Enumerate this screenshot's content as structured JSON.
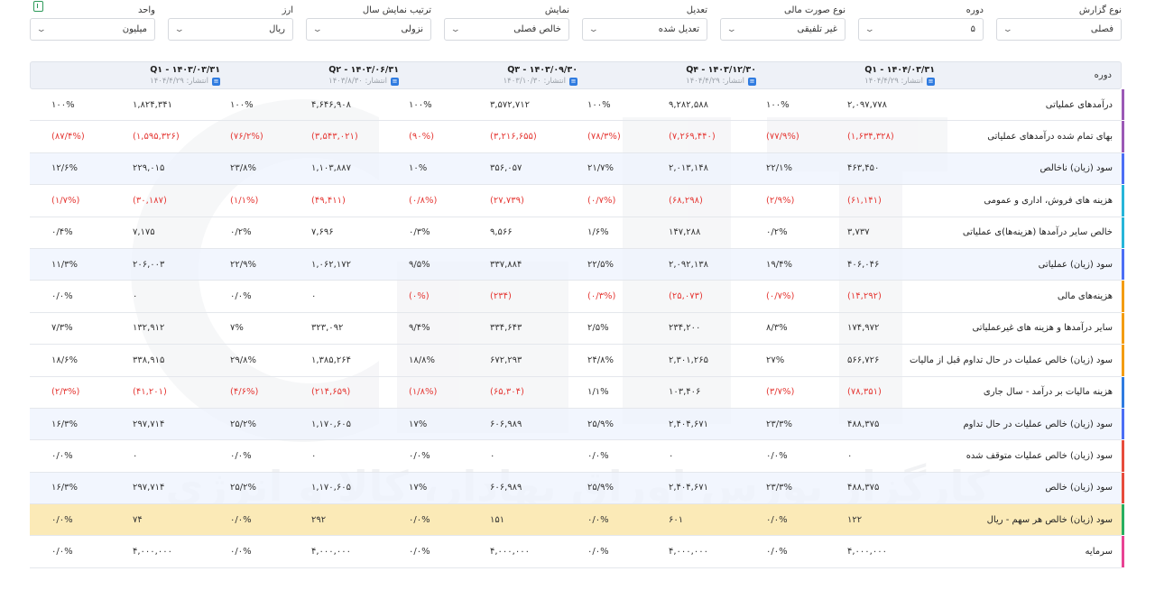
{
  "filters": [
    {
      "label": "نوع گزارش",
      "value": "فصلی"
    },
    {
      "label": "دوره",
      "value": "۵"
    },
    {
      "label": "نوع صورت مالی",
      "value": "غیر تلفیقی"
    },
    {
      "label": "تعدیل",
      "value": "تعدیل شده"
    },
    {
      "label": "نمایش",
      "value": "خالص فصلی"
    },
    {
      "label": "ترتیب نمایش سال",
      "value": "نزولی"
    },
    {
      "label": "ارز",
      "value": "ریال"
    },
    {
      "label": "واحد",
      "value": "میلیون"
    }
  ],
  "header": {
    "title": "دوره",
    "periods": [
      {
        "name": "Q۱ - ۱۴۰۴/۰۳/۳۱",
        "published": "انتشار: ۱۴۰۴/۴/۲۹"
      },
      {
        "name": "Q۴ - ۱۴۰۳/۱۲/۳۰",
        "published": "انتشار: ۱۴۰۴/۴/۲۹"
      },
      {
        "name": "Q۳ - ۱۴۰۳/۰۹/۳۰",
        "published": "انتشار: ۱۴۰۳/۱۰/۳۰"
      },
      {
        "name": "Q۲ - ۱۴۰۳/۰۶/۳۱",
        "published": "انتشار: ۱۴۰۳/۸/۳۰"
      },
      {
        "name": "Q۱ - ۱۴۰۳/۰۳/۳۱",
        "published": "انتشار: ۱۴۰۴/۴/۲۹"
      }
    ],
    "pub_icon": "document-icon"
  },
  "rows": [
    {
      "label": "درآمدهای عملیاتی",
      "stripe": "#9b59b6",
      "cells": [
        [
          "۲,۰۹۷,۷۷۸",
          "۱۰۰%"
        ],
        [
          "۹,۲۸۲,۵۸۸",
          "۱۰۰%"
        ],
        [
          "۳,۵۷۲,۷۱۲",
          "۱۰۰%"
        ],
        [
          "۴,۶۴۶,۹۰۸",
          "۱۰۰%"
        ],
        [
          "۱,۸۲۴,۳۴۱",
          "۱۰۰%"
        ]
      ]
    },
    {
      "label": "بهای تمام شده درآمدهای عملیاتی",
      "stripe": "#9b59b6",
      "cells": [
        [
          "(۱,۶۳۴,۳۲۸)",
          "(۷۷/۹%)"
        ],
        [
          "(۷,۲۶۹,۴۴۰)",
          "(۷۸/۳%)"
        ],
        [
          "(۳,۲۱۶,۶۵۵)",
          "(۹۰%)"
        ],
        [
          "(۳,۵۴۳,۰۲۱)",
          "(۷۶/۲%)"
        ],
        [
          "(۱,۵۹۵,۳۲۶)",
          "(۸۷/۴%)"
        ]
      ]
    },
    {
      "label": "سود (زیان) ناخالص",
      "stripe": "#4c6ef5",
      "cells": [
        [
          "۴۶۳,۴۵۰",
          "۲۲/۱%"
        ],
        [
          "۲,۰۱۳,۱۴۸",
          "۲۱/۷%"
        ],
        [
          "۳۵۶,۰۵۷",
          "۱۰%"
        ],
        [
          "۱,۱۰۳,۸۸۷",
          "۲۳/۸%"
        ],
        [
          "۲۲۹,۰۱۵",
          "۱۲/۶%"
        ]
      ]
    },
    {
      "label": "هزینه های فروش، اداری و عمومی",
      "stripe": "#26b5d9",
      "cells": [
        [
          "(۶۱,۱۴۱)",
          "(۲/۹%)"
        ],
        [
          "(۶۸,۲۹۸)",
          "(۰/۷%)"
        ],
        [
          "(۲۷,۷۳۹)",
          "(۰/۸%)"
        ],
        [
          "(۴۹,۴۱۱)",
          "(۱/۱%)"
        ],
        [
          "(۳۰,۱۸۷)",
          "(۱/۷%)"
        ]
      ]
    },
    {
      "label": "خالص سایر درآمدها (هزینه‌ها)ی عملیاتی",
      "stripe": "#26b5d9",
      "cells": [
        [
          "۳,۷۳۷",
          "۰/۲%"
        ],
        [
          "۱۴۷,۲۸۸",
          "۱/۶%"
        ],
        [
          "۹,۵۶۶",
          "۰/۳%"
        ],
        [
          "۷,۶۹۶",
          "۰/۲%"
        ],
        [
          "۷,۱۷۵",
          "۰/۴%"
        ]
      ]
    },
    {
      "label": "سود (زیان) عملیاتی",
      "stripe": "#4c6ef5",
      "cells": [
        [
          "۴۰۶,۰۴۶",
          "۱۹/۴%"
        ],
        [
          "۲,۰۹۲,۱۳۸",
          "۲۲/۵%"
        ],
        [
          "۳۳۷,۸۸۴",
          "۹/۵%"
        ],
        [
          "۱,۰۶۲,۱۷۲",
          "۲۲/۹%"
        ],
        [
          "۲۰۶,۰۰۳",
          "۱۱/۳%"
        ]
      ]
    },
    {
      "label": "هزینه‌های مالی",
      "stripe": "#f39c12",
      "cells": [
        [
          "(۱۴,۲۹۲)",
          "(۰/۷%)"
        ],
        [
          "(۲۵,۰۷۳)",
          "(۰/۳%)"
        ],
        [
          "(۲۳۴)",
          "(۰%)"
        ],
        [
          "۰",
          "۰/۰%"
        ],
        [
          "۰",
          "۰/۰%"
        ]
      ]
    },
    {
      "label": "سایر درآمدها و هزینه های غیرعملیاتی",
      "stripe": "#f39c12",
      "cells": [
        [
          "۱۷۴,۹۷۲",
          "۸/۳%"
        ],
        [
          "۲۳۴,۲۰۰",
          "۲/۵%"
        ],
        [
          "۳۳۴,۶۴۳",
          "۹/۴%"
        ],
        [
          "۳۲۳,۰۹۲",
          "۷%"
        ],
        [
          "۱۳۲,۹۱۲",
          "۷/۳%"
        ]
      ]
    },
    {
      "label": "سود (زیان) خالص عملیات در حال تداوم قبل از مالیات",
      "stripe": "#f39c12",
      "cells": [
        [
          "۵۶۶,۷۲۶",
          "۲۷%"
        ],
        [
          "۲,۳۰۱,۲۶۵",
          "۲۴/۸%"
        ],
        [
          "۶۷۲,۲۹۳",
          "۱۸/۸%"
        ],
        [
          "۱,۳۸۵,۲۶۴",
          "۲۹/۸%"
        ],
        [
          "۳۳۸,۹۱۵",
          "۱۸/۶%"
        ]
      ]
    },
    {
      "label": "هزینه مالیات بر درآمد - سال جاری",
      "stripe": "#2f7be0",
      "cells": [
        [
          "(۷۸,۳۵۱)",
          "(۳/۷%)"
        ],
        [
          "۱۰۳,۴۰۶",
          "۱/۱%"
        ],
        [
          "(۶۵,۳۰۴)",
          "(۱/۸%)"
        ],
        [
          "(۲۱۴,۶۵۹)",
          "(۴/۶%)"
        ],
        [
          "(۴۱,۲۰۱)",
          "(۲/۳%)"
        ]
      ]
    },
    {
      "label": "سود (زیان) خالص عملیات در حال تداوم",
      "stripe": "#4c6ef5",
      "cells": [
        [
          "۴۸۸,۳۷۵",
          "۲۳/۳%"
        ],
        [
          "۲,۴۰۴,۶۷۱",
          "۲۵/۹%"
        ],
        [
          "۶۰۶,۹۸۹",
          "۱۷%"
        ],
        [
          "۱,۱۷۰,۶۰۵",
          "۲۵/۲%"
        ],
        [
          "۲۹۷,۷۱۴",
          "۱۶/۳%"
        ]
      ]
    },
    {
      "label": "سود (زیان) خالص عملیات متوقف شده",
      "stripe": "#e74c3c",
      "cells": [
        [
          "۰",
          "۰/۰%"
        ],
        [
          "۰",
          "۰/۰%"
        ],
        [
          "۰",
          "۰/۰%"
        ],
        [
          "۰",
          "۰/۰%"
        ],
        [
          "۰",
          "۰/۰%"
        ]
      ]
    },
    {
      "label": "سود (زیان) خالص",
      "stripe": "#e74c3c",
      "cells": [
        [
          "۴۸۸,۳۷۵",
          "۲۳/۳%"
        ],
        [
          "۲,۴۰۴,۶۷۱",
          "۲۵/۹%"
        ],
        [
          "۶۰۶,۹۸۹",
          "۱۷%"
        ],
        [
          "۱,۱۷۰,۶۰۵",
          "۲۵/۲%"
        ],
        [
          "۲۹۷,۷۱۴",
          "۱۶/۳%"
        ]
      ]
    },
    {
      "label": "سود (زیان) خالص هر سهم - ریال",
      "stripe": "#27ae60",
      "cells": [
        [
          "۱۲۲",
          "۰/۰%"
        ],
        [
          "۶۰۱",
          "۰/۰%"
        ],
        [
          "۱۵۱",
          "۰/۰%"
        ],
        [
          "۲۹۲",
          "۰/۰%"
        ],
        [
          "۷۴",
          "۰/۰%"
        ]
      ]
    },
    {
      "label": "سرمایه",
      "stripe": "#e84393",
      "cells": [
        [
          "۴,۰۰۰,۰۰۰",
          "۰/۰%"
        ],
        [
          "۴,۰۰۰,۰۰۰",
          "۰/۰%"
        ],
        [
          "۴,۰۰۰,۰۰۰",
          "۰/۰%"
        ],
        [
          "۴,۰۰۰,۰۰۰",
          "۰/۰%"
        ],
        [
          "۴,۰۰۰,۰۰۰",
          "۰/۰%"
        ]
      ]
    }
  ],
  "watermark_text": "کارگزار بورس اوراق بهادار، کالا و انرژی",
  "colors": {
    "negative": "#e53935",
    "header_bg": "#eef1f7",
    "eps_row_bg": "#fbeab7",
    "pub_icon": "#2f7be0"
  }
}
